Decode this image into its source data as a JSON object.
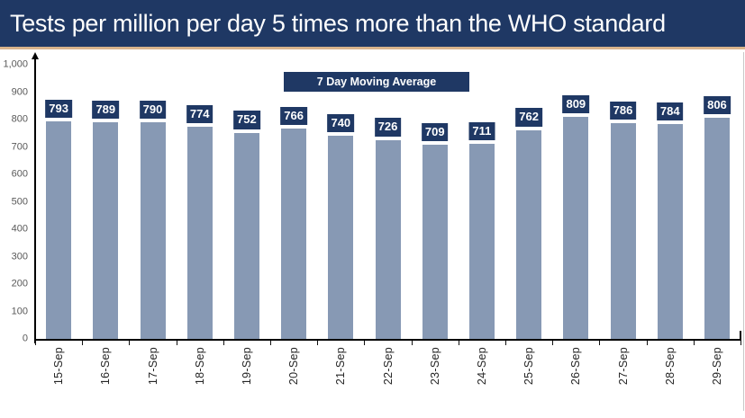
{
  "header": {
    "title": "Tests per million per day 5 times more than the WHO standard"
  },
  "legend": {
    "label": "7 Day Moving Average"
  },
  "colors": {
    "title_bar": "#1F3864",
    "accent_border": "#D9B48C",
    "bar": "#8799B4",
    "label_box": "#1F3864",
    "axis": "#000000",
    "tick_label": "#595959",
    "date_label": "#262626"
  },
  "chart_data": {
    "type": "bar",
    "title": "Tests per million per day 5 times more than the WHO standard",
    "series_label": "7 Day Moving Average",
    "categories": [
      "15-Sep",
      "16-Sep",
      "17-Sep",
      "18-Sep",
      "19-Sep",
      "20-Sep",
      "21-Sep",
      "22-Sep",
      "23-Sep",
      "24-Sep",
      "25-Sep",
      "26-Sep",
      "27-Sep",
      "28-Sep",
      "29-Sep"
    ],
    "values": [
      793,
      789,
      790,
      774,
      752,
      766,
      740,
      726,
      709,
      711,
      762,
      809,
      786,
      784,
      806
    ],
    "xlabel": "",
    "ylabel": "",
    "ylim": [
      0,
      1000
    ],
    "y_ticks": [
      {
        "label": "0",
        "value": 0
      },
      {
        "label": "100",
        "value": 100
      },
      {
        "label": "200",
        "value": 200
      },
      {
        "label": "300",
        "value": 300
      },
      {
        "label": "400",
        "value": 400
      },
      {
        "label": "500",
        "value": 500
      },
      {
        "label": "600",
        "value": 600
      },
      {
        "label": "700",
        "value": 700
      },
      {
        "label": "800",
        "value": 800
      },
      {
        "label": "900",
        "value": 900
      },
      {
        "label": "1,000",
        "value": 1000
      }
    ],
    "grid": false,
    "data_labels": true,
    "legend_position": "top-center"
  }
}
